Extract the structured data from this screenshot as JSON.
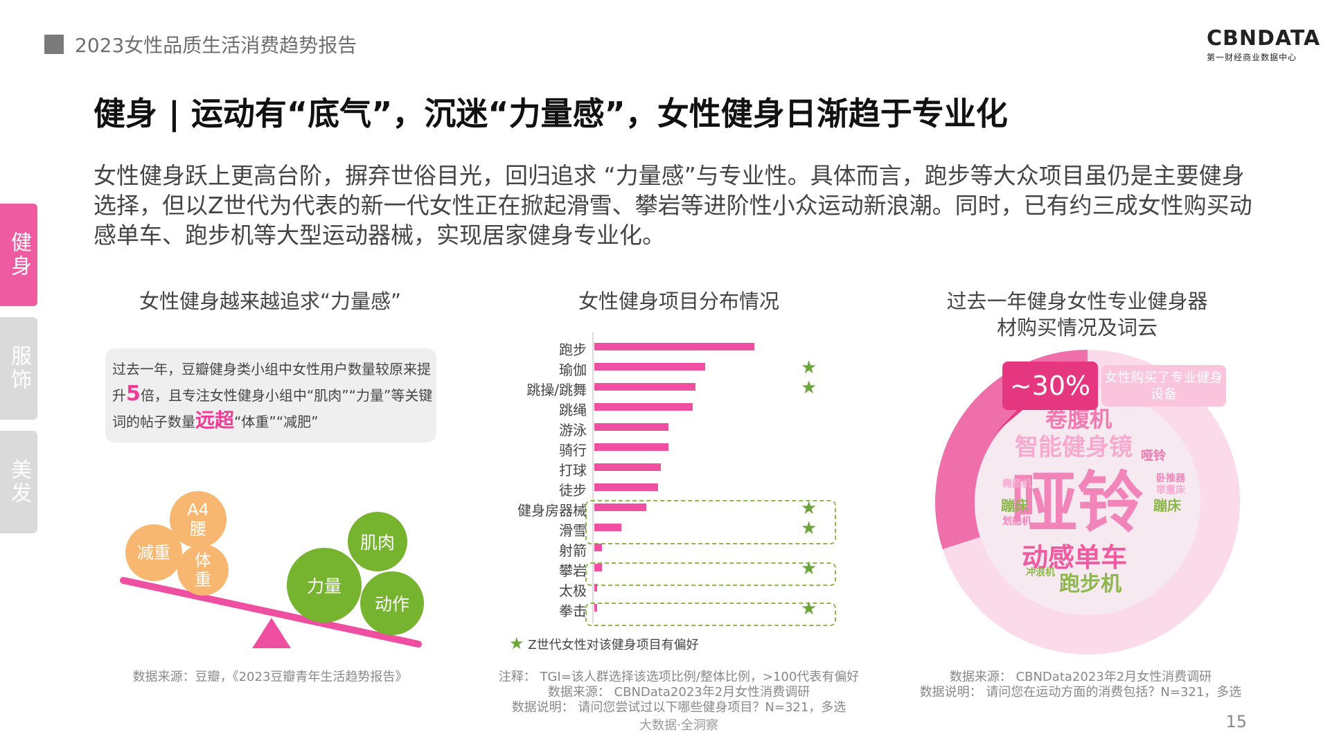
{
  "header": {
    "report_title": "2023女性品质生活消费趋势报告",
    "logo_main": "CBNDATA",
    "logo_sub": "第一财经商业数据中心"
  },
  "main_title": "健身 | 运动有“底气”，沉迷“力量感”，女性健身日渐趋于专业化",
  "intro": "女性健身跃上更高台阶，摒弃世俗目光，回归追求 “力量感”与专业性。具体而言，跑步等大众项目虽仍是主要健身选择，但以Z世代为代表的新一代女性正在掀起滑雪、攀岩等进阶性小众运动新浪潮。同时，已有约三成女性购买动感单车、跑步机等大型运动器械，实现居家健身专业化。",
  "side_tabs": [
    "健身",
    "服饰",
    "美发"
  ],
  "panel1": {
    "title": "女性健身越来越追求“力量感”",
    "callout": {
      "t1": "过去一年，豆瓣健身类小组中女性用户数量较原来提升",
      "h1": "5",
      "t2": "倍，且专注女性健身小组中“肌肉”“力量”等关键词的帖子数量",
      "h2": "远超",
      "t3": "“体重”“减肥”"
    },
    "light_words": [
      "A4腰",
      "减重",
      "体重"
    ],
    "heavy_words": [
      "肌肉",
      "力量",
      "动作"
    ],
    "source": "数据来源：豆瓣，《2023豆瓣青年生活趋势报告》"
  },
  "panel2": {
    "title": "女性健身项目分布情况",
    "legend": "Z世代女性对该健身项目有偏好",
    "notes": [
      "注释： TGI=该人群选择该选项比例/整体比例，>100代表有偏好",
      "数据来源： CBNData2023年2月女性消费调研",
      "数据说明： 请问您尝试过以下哪些健身项目？N=321，多选"
    ]
  },
  "chart_data": {
    "type": "bar",
    "orientation": "horizontal",
    "categories": [
      "跑步",
      "瑜伽",
      "跳操/跳舞",
      "跳绳",
      "游泳",
      "骑行",
      "打球",
      "徒步",
      "健身房器械",
      "滑雪",
      "射箭",
      "攀岩",
      "太极",
      "拳击"
    ],
    "values": [
      65,
      45,
      41,
      40,
      30,
      30,
      27,
      26,
      21,
      11,
      3,
      3,
      1,
      1
    ],
    "gen_z_preference": [
      false,
      true,
      true,
      false,
      false,
      false,
      false,
      false,
      true,
      true,
      false,
      true,
      false,
      true
    ],
    "title": "女性健身项目分布情况",
    "xlabel": "",
    "ylabel": "",
    "xlim": [
      0,
      100
    ],
    "bar_color": "#ef4fa0",
    "star_color": "#6ba53a"
  },
  "panel3": {
    "title_line1": "过去一年健身女性专业健身器",
    "title_line2": "材购买情况及词云",
    "percent": "~30%",
    "percent_value": 0.3,
    "badge_label": "女性购买了专业健身设备",
    "cloud_words": {
      "big": "哑铃",
      "w1": "卷腹机",
      "w2": "智能健身镜",
      "w3": "动感单车",
      "w4": "跑步机",
      "w5": "蹦床",
      "w6": "哑铃",
      "w7": "蹦床",
      "w8": "卧推器",
      "w9": "划船机",
      "w10": "冲浪机",
      "w11": "举重床",
      "w12": "椭圆机"
    },
    "source_lines": [
      "数据来源： CBNData2023年2月女性消费调研",
      "数据说明： 请问您在运动方面的消费包括？N=321，多选"
    ]
  },
  "footer": {
    "tagline": "大数据·全洞察",
    "page_number": "15"
  },
  "colors": {
    "accent": "#ef4fa0",
    "green": "#76b32f",
    "orange": "#f8b770"
  }
}
